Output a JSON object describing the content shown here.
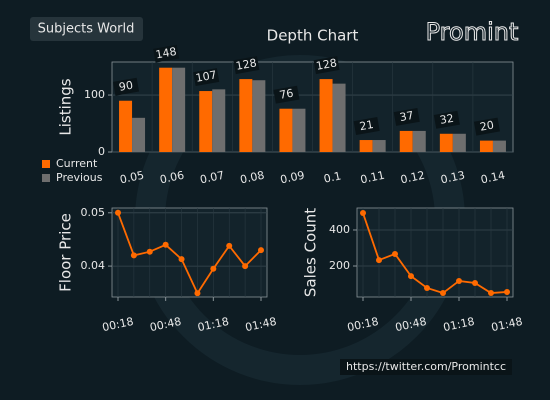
{
  "header": {
    "badge": "Subjects World",
    "logo": "Promint"
  },
  "footer": {
    "url": "https://twitter.com/Promintcc"
  },
  "chart_data": [
    {
      "type": "bar",
      "title": "Depth Chart",
      "y_label": "Listings",
      "categories": [
        "0.05",
        "0.06",
        "0.07",
        "0.08",
        "0.09",
        "0.1",
        "0.11",
        "0.12",
        "0.13",
        "0.14"
      ],
      "series": [
        {
          "name": "Current",
          "color": "#ff6a00",
          "values": [
            90,
            148,
            107,
            128,
            76,
            128,
            21,
            37,
            32,
            20
          ]
        },
        {
          "name": "Previous",
          "color": "#6e6e6e",
          "values": [
            60,
            148,
            110,
            126,
            76,
            120,
            21,
            37,
            32,
            20
          ]
        }
      ],
      "ylim": [
        0,
        158
      ],
      "yticks": [
        0,
        100
      ],
      "grid": true,
      "legend": "lower left"
    },
    {
      "type": "line",
      "y_label": "Floor Price",
      "categories": [
        "00:18",
        null,
        null,
        "00:48",
        null,
        null,
        "01:18",
        null,
        null,
        "01:48"
      ],
      "series": [
        {
          "color": "#ff6a00",
          "values": [
            0.05,
            0.042,
            0.0427,
            0.044,
            0.0413,
            0.0349,
            0.0395,
            0.0438,
            0.04,
            0.043
          ]
        }
      ],
      "ylim": [
        0.0342,
        0.0509
      ],
      "yticks": [
        0.04,
        0.05
      ],
      "grid": true
    },
    {
      "type": "line",
      "y_label": "Sales Count",
      "categories": [
        "00:18",
        null,
        null,
        "00:48",
        null,
        null,
        "01:18",
        null,
        null,
        "01:48"
      ],
      "series": [
        {
          "color": "#ff6a00",
          "values": [
            494,
            233,
            267,
            144,
            78,
            50,
            117,
            106,
            50,
            56
          ]
        }
      ],
      "ylim": [
        28,
        522
      ],
      "yticks": [
        200,
        400
      ],
      "grid": true
    }
  ]
}
